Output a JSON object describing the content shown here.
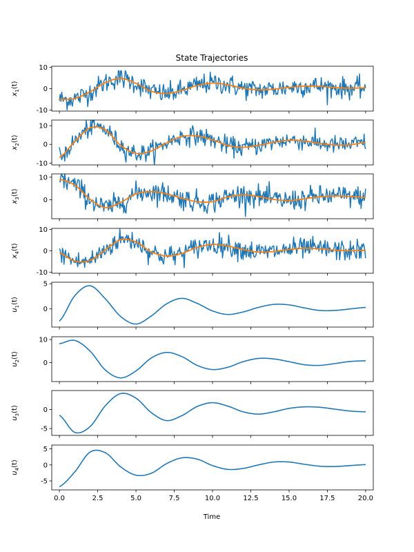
{
  "figure": {
    "title": "State Trajectories",
    "xlabel": "Time",
    "colors": {
      "noisy": "#1f77b4",
      "smooth": "#ff7f0e",
      "control": "#1f77b4"
    }
  },
  "chart_data": [
    {
      "type": "line",
      "ylabel_base": "x",
      "ylabel_sub": "1",
      "ylabel_suffix": "(t)",
      "xlim": [
        -0.5,
        20.5
      ],
      "ylim": [
        -10.5,
        10.5
      ],
      "yticks": [
        -10,
        0,
        10
      ],
      "xticks": [
        0,
        2.5,
        5,
        7.5,
        10,
        12.5,
        15,
        17.5,
        20
      ],
      "noisy": true,
      "x": [
        0,
        1,
        2,
        3,
        4,
        5,
        6,
        7,
        8,
        9,
        10,
        11,
        12,
        13,
        14,
        15,
        16,
        17,
        18,
        19,
        20
      ],
      "series": [
        {
          "role": "smooth",
          "values": [
            -5,
            -4.6,
            -1.5,
            2.8,
            4.8,
            2.5,
            -1.2,
            -2.3,
            -0.8,
            1.5,
            2.6,
            1.8,
            0.2,
            -0.5,
            -0.2,
            0.6,
            1.2,
            1.1,
            0.5,
            0.2,
            0.4
          ]
        }
      ]
    },
    {
      "type": "line",
      "ylabel_base": "x",
      "ylabel_sub": "2",
      "ylabel_suffix": "(t)",
      "xlim": [
        -0.5,
        20.5
      ],
      "ylim": [
        -11,
        13
      ],
      "yticks": [
        -10,
        0,
        10
      ],
      "xticks": [
        0,
        2.5,
        5,
        7.5,
        10,
        12.5,
        15,
        17.5,
        20
      ],
      "noisy": true,
      "x": [
        0,
        1,
        2,
        3,
        4,
        5,
        6,
        7,
        8,
        9,
        10,
        11,
        12,
        13,
        14,
        15,
        16,
        17,
        18,
        19,
        20
      ],
      "series": [
        {
          "role": "smooth",
          "values": [
            -7,
            1.5,
            8.8,
            7.8,
            -0.5,
            -4.8,
            -3.5,
            0.8,
            4.2,
            4.5,
            2.4,
            -0.6,
            -1.6,
            -0.5,
            1.1,
            2.2,
            1.8,
            0.5,
            -0.3,
            -0.2,
            1.0
          ]
        }
      ]
    },
    {
      "type": "line",
      "ylabel_base": "x",
      "ylabel_sub": "3",
      "ylabel_suffix": "(t)",
      "xlim": [
        -0.5,
        20.5
      ],
      "ylim": [
        -8.5,
        11.5
      ],
      "yticks": [
        0,
        10
      ],
      "xticks": [
        0,
        2.5,
        5,
        7.5,
        10,
        12.5,
        15,
        17.5,
        20
      ],
      "noisy": true,
      "x": [
        0,
        1,
        2,
        3,
        4,
        5,
        6,
        7,
        8,
        9,
        10,
        11,
        12,
        13,
        14,
        15,
        16,
        17,
        18,
        19,
        20
      ],
      "series": [
        {
          "role": "smooth",
          "values": [
            9,
            6.5,
            0.2,
            -3.5,
            -1.2,
            2.6,
            3.6,
            2.6,
            0.6,
            -0.9,
            -0.9,
            1.2,
            2.2,
            1.4,
            0.1,
            -0.4,
            0.4,
            1.3,
            1.6,
            1.4,
            1.0
          ]
        }
      ]
    },
    {
      "type": "line",
      "ylabel_base": "x",
      "ylabel_sub": "4",
      "ylabel_suffix": "(t)",
      "xlim": [
        -0.5,
        20.5
      ],
      "ylim": [
        -10.5,
        10.5
      ],
      "yticks": [
        -10,
        0,
        10
      ],
      "xticks": [
        0,
        2.5,
        5,
        7.5,
        10,
        12.5,
        15,
        17.5,
        20
      ],
      "noisy": true,
      "x": [
        0,
        1,
        2,
        3,
        4,
        5,
        6,
        7,
        8,
        9,
        10,
        11,
        12,
        13,
        14,
        15,
        16,
        17,
        18,
        19,
        20
      ],
      "series": [
        {
          "role": "smooth",
          "values": [
            -1,
            -4.8,
            -4.5,
            0.5,
            5.2,
            4.2,
            -0.5,
            -2.4,
            -1.2,
            1.6,
            3.0,
            2.2,
            0.6,
            -0.6,
            -0.3,
            0.6,
            1.2,
            0.9,
            0.3,
            0.0,
            0.2
          ]
        }
      ]
    },
    {
      "type": "line",
      "ylabel_base": "u",
      "ylabel_sub": "1",
      "ylabel_suffix": "(t)",
      "xlim": [
        -0.5,
        20.5
      ],
      "ylim": [
        -3.6,
        5.3
      ],
      "yticks": [
        0,
        5
      ],
      "xticks": [
        0,
        2.5,
        5,
        7.5,
        10,
        12.5,
        15,
        17.5,
        20
      ],
      "noisy": false,
      "x": [
        0,
        1,
        2,
        3,
        4,
        5,
        6,
        7,
        8,
        9,
        10,
        11,
        12,
        13,
        14,
        15,
        16,
        17,
        18,
        19,
        20
      ],
      "series": [
        {
          "role": "control",
          "values": [
            -2.4,
            2.6,
            4.6,
            2.0,
            -1.5,
            -3.0,
            -1.4,
            1.0,
            2.1,
            1.1,
            -0.4,
            -1.1,
            -0.6,
            0.3,
            0.9,
            0.8,
            0.2,
            -0.3,
            -0.3,
            0.0,
            0.3
          ]
        }
      ]
    },
    {
      "type": "line",
      "ylabel_base": "u",
      "ylabel_sub": "2",
      "ylabel_suffix": "(t)",
      "xlim": [
        -0.5,
        20.5
      ],
      "ylim": [
        -8.2,
        11.2
      ],
      "yticks": [
        0,
        10
      ],
      "xticks": [
        0,
        2.5,
        5,
        7.5,
        10,
        12.5,
        15,
        17.5,
        20
      ],
      "noisy": false,
      "x": [
        0,
        1,
        2,
        3,
        4,
        5,
        6,
        7,
        8,
        9,
        10,
        11,
        12,
        13,
        14,
        15,
        16,
        17,
        18,
        19,
        20
      ],
      "series": [
        {
          "role": "control",
          "values": [
            8.2,
            9.6,
            5.0,
            -3.2,
            -6.6,
            -3.6,
            2.0,
            4.4,
            2.6,
            -1.2,
            -3.0,
            -2.0,
            0.4,
            1.8,
            1.6,
            0.4,
            -0.9,
            -1.2,
            -0.4,
            0.5,
            0.8
          ]
        }
      ]
    },
    {
      "type": "line",
      "ylabel_base": "u",
      "ylabel_sub": "3",
      "ylabel_suffix": "(t)",
      "xlim": [
        -0.5,
        20.5
      ],
      "ylim": [
        -6.8,
        5.0
      ],
      "yticks": [
        -5,
        0
      ],
      "xticks": [
        0,
        2.5,
        5,
        7.5,
        10,
        12.5,
        15,
        17.5,
        20
      ],
      "noisy": false,
      "x": [
        0,
        1,
        2,
        3,
        4,
        5,
        6,
        7,
        8,
        9,
        10,
        11,
        12,
        13,
        14,
        15,
        16,
        17,
        18,
        19,
        20
      ],
      "series": [
        {
          "role": "control",
          "values": [
            -1.5,
            -6.0,
            -4.5,
            1.0,
            4.2,
            3.0,
            -0.8,
            -2.9,
            -1.6,
            0.8,
            1.8,
            0.9,
            -0.6,
            -1.2,
            -0.6,
            0.3,
            0.7,
            0.6,
            0.1,
            -0.4,
            -0.6
          ]
        }
      ]
    },
    {
      "type": "line",
      "ylabel_base": "u",
      "ylabel_sub": "4",
      "ylabel_suffix": "(t)",
      "xlim": [
        -0.5,
        20.5
      ],
      "ylim": [
        -7.8,
        6.2
      ],
      "yticks": [
        -5,
        0,
        5
      ],
      "xticks": [
        0,
        2.5,
        5,
        7.5,
        10,
        12.5,
        15,
        17.5,
        20
      ],
      "xticklabels": [
        "0.0",
        "2.5",
        "5.0",
        "7.5",
        "10.0",
        "12.5",
        "15.0",
        "17.5",
        "20.0"
      ],
      "noisy": false,
      "x": [
        0,
        1,
        2,
        3,
        4,
        5,
        6,
        7,
        8,
        9,
        10,
        11,
        12,
        13,
        14,
        15,
        16,
        17,
        18,
        19,
        20
      ],
      "series": [
        {
          "role": "control",
          "values": [
            -6.8,
            -2.2,
            4.0,
            3.8,
            -0.6,
            -3.2,
            -2.6,
            0.4,
            2.2,
            1.8,
            -0.2,
            -1.4,
            -1.1,
            0.0,
            0.9,
            0.9,
            0.2,
            -0.4,
            -0.5,
            -0.2,
            0.1
          ]
        }
      ]
    }
  ]
}
